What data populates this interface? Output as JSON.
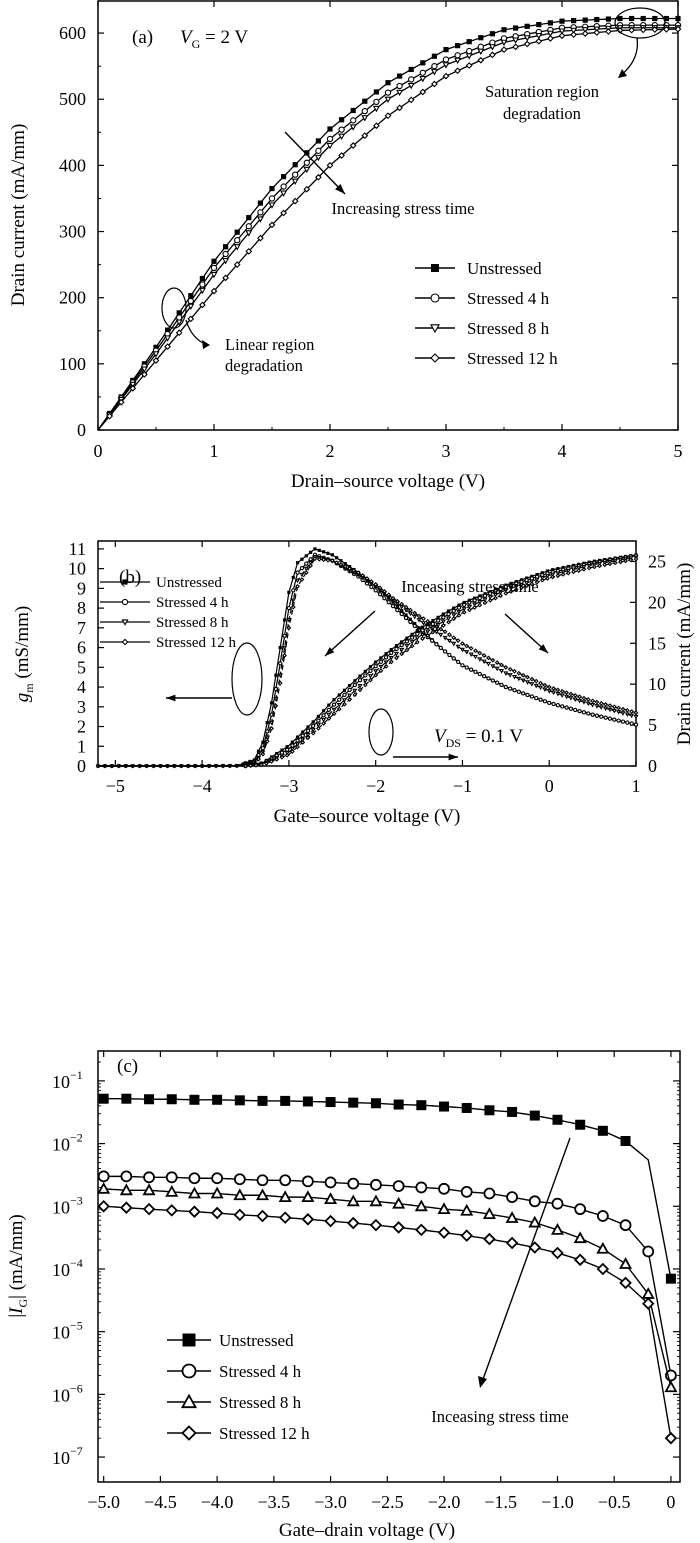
{
  "chart_data": [
    {
      "panel": "(a)",
      "type": "line",
      "condition": {
        "V": "V",
        "sub": "G",
        "rest": " = 2 V"
      },
      "xlabel": "Drain–source voltage (V)",
      "ylabel": "Drain current (mA/mm)",
      "xlim": [
        0,
        5
      ],
      "ylim": [
        0,
        650
      ],
      "xticks": [
        "0",
        "1",
        "2",
        "3",
        "4",
        "5"
      ],
      "yticks": [
        "0",
        "100",
        "200",
        "300",
        "400",
        "500",
        "600"
      ],
      "xtick_values": [
        0,
        1,
        2,
        3,
        4,
        5
      ],
      "ytick_values": [
        0,
        100,
        200,
        300,
        400,
        500,
        600
      ],
      "legend_position": "lower-right",
      "series": [
        {
          "name": "Unstressed",
          "marker": "square",
          "x": [
            0,
            0.5,
            1,
            1.5,
            2,
            2.5,
            3,
            3.5,
            4,
            4.5,
            5
          ],
          "values": [
            0,
            125,
            255,
            365,
            455,
            525,
            575,
            605,
            618,
            622,
            622
          ]
        },
        {
          "name": "Stressed 4 h",
          "marker": "circle",
          "x": [
            0,
            0.5,
            1,
            1.5,
            2,
            2.5,
            3,
            3.5,
            4,
            4.5,
            5
          ],
          "values": [
            0,
            120,
            245,
            350,
            440,
            510,
            560,
            592,
            608,
            612,
            612
          ]
        },
        {
          "name": "Stressed 8 h",
          "marker": "triangle-down",
          "x": [
            0,
            0.5,
            1,
            1.5,
            2,
            2.5,
            3,
            3.5,
            4,
            4.5,
            5
          ],
          "values": [
            0,
            115,
            235,
            340,
            430,
            500,
            552,
            586,
            603,
            608,
            608
          ]
        },
        {
          "name": "Stressed 12 h",
          "marker": "diamond",
          "x": [
            0,
            0.5,
            1,
            1.5,
            2,
            2.5,
            3,
            3.5,
            4,
            4.5,
            5
          ],
          "values": [
            0,
            105,
            210,
            310,
            400,
            475,
            535,
            575,
            596,
            604,
            606
          ]
        }
      ],
      "annotations": {
        "stress": "Increasing stress time",
        "saturation_1": "Saturation region",
        "saturation_2": "degradation",
        "linear_1": "Linear region",
        "linear_2": "degradation"
      }
    },
    {
      "panel": "(b)",
      "type": "line",
      "condition": {
        "V": "V",
        "sub": "DS",
        "rest": " = 0.1 V"
      },
      "xlabel": "Gate–source voltage (V)",
      "ylabel_left": {
        "g": "g",
        "sub": "m",
        "rest": " (mS/mm)"
      },
      "ylabel_right": "Drain current (mA/mm)",
      "xlim": [
        -5.2,
        1
      ],
      "ylim_left": [
        0,
        11.4
      ],
      "ylim_right": [
        0,
        27.5
      ],
      "xticks": [
        "−5",
        "−4",
        "−3",
        "−2",
        "−1",
        "0",
        "1"
      ],
      "xtick_values": [
        -5,
        -4,
        -3,
        -2,
        -1,
        0,
        1
      ],
      "yticks_left": [
        "0",
        "1",
        "2",
        "3",
        "4",
        "5",
        "6",
        "7",
        "8",
        "9",
        "10",
        "11"
      ],
      "yticks_right": [
        "0",
        "5",
        "10",
        "15",
        "20",
        "25"
      ],
      "legend_position": "top-left",
      "series_gm": [
        {
          "name": "Unstressed",
          "x": [
            -5,
            -4,
            -3.6,
            -3.4,
            -3.3,
            -3.2,
            -3.1,
            -3.0,
            -2.9,
            -2.7,
            -2.5,
            -2.2,
            -2.0,
            -1.8,
            -1.5,
            -1.2,
            -1.0,
            -0.5,
            0,
            0.5,
            1.0
          ],
          "values": [
            0,
            0,
            0.02,
            0.3,
            1.2,
            3.2,
            6.0,
            8.8,
            10.3,
            11.0,
            10.7,
            9.8,
            9.1,
            8.3,
            7.0,
            5.8,
            5.1,
            4.0,
            3.2,
            2.6,
            2.1
          ]
        },
        {
          "name": "Stressed 4 h",
          "x": [
            -5,
            -4,
            -3.6,
            -3.4,
            -3.3,
            -3.2,
            -3.1,
            -3.0,
            -2.9,
            -2.7,
            -2.5,
            -2.2,
            -2.0,
            -1.8,
            -1.5,
            -1.2,
            -1.0,
            -0.5,
            0,
            0.5,
            1.0
          ],
          "values": [
            0,
            0,
            0.01,
            0.2,
            0.9,
            2.6,
            5.2,
            8.0,
            9.8,
            10.7,
            10.4,
            9.6,
            8.9,
            8.1,
            6.9,
            5.8,
            5.1,
            4.0,
            3.2,
            2.6,
            2.1
          ]
        },
        {
          "name": "Stressed 8 h",
          "x": [
            -5,
            -4,
            -3.6,
            -3.4,
            -3.3,
            -3.2,
            -3.1,
            -3.0,
            -2.9,
            -2.7,
            -2.5,
            -2.2,
            -2.0,
            -1.8,
            -1.5,
            -1.2,
            -1.0,
            -0.5,
            0,
            0.5,
            1.0
          ],
          "values": [
            0,
            0,
            0.01,
            0.15,
            0.7,
            2.2,
            4.6,
            7.4,
            9.4,
            10.6,
            10.4,
            9.7,
            9.1,
            8.4,
            7.4,
            6.5,
            5.9,
            4.7,
            3.8,
            3.1,
            2.5
          ]
        },
        {
          "name": "Stressed 12 h",
          "x": [
            -5,
            -4,
            -3.6,
            -3.4,
            -3.3,
            -3.2,
            -3.1,
            -3.0,
            -2.9,
            -2.7,
            -2.5,
            -2.2,
            -2.0,
            -1.8,
            -1.5,
            -1.2,
            -1.0,
            -0.5,
            0,
            0.5,
            1.0
          ],
          "values": [
            0,
            0,
            0.01,
            0.1,
            0.6,
            1.9,
            4.2,
            7.0,
            9.1,
            10.5,
            10.4,
            9.8,
            9.2,
            8.5,
            7.6,
            6.8,
            6.2,
            5.0,
            4.0,
            3.3,
            2.7
          ]
        }
      ],
      "series_id": [
        {
          "name": "Unstressed",
          "x": [
            -5,
            -3.5,
            -3.3,
            -3.0,
            -2.7,
            -2.5,
            -2.2,
            -2.0,
            -1.8,
            -1.5,
            -1.2,
            -1.0,
            -0.5,
            0,
            0.5,
            1.0
          ],
          "values": [
            0,
            0,
            0.4,
            2.5,
            5.6,
            7.9,
            10.8,
            12.7,
            14.4,
            16.7,
            18.7,
            19.9,
            22.1,
            23.9,
            25.0,
            25.8
          ]
        },
        {
          "name": "Stressed 4 h",
          "x": [
            -5,
            -3.5,
            -3.3,
            -3.0,
            -2.7,
            -2.5,
            -2.2,
            -2.0,
            -1.8,
            -1.5,
            -1.2,
            -1.0,
            -0.5,
            0,
            0.5,
            1.0
          ],
          "values": [
            0,
            0,
            0.3,
            2.1,
            5.1,
            7.3,
            10.3,
            12.2,
            14.0,
            16.3,
            18.3,
            19.6,
            21.9,
            23.6,
            24.8,
            25.7
          ]
        },
        {
          "name": "Stressed 8 h",
          "x": [
            -5,
            -3.5,
            -3.3,
            -3.0,
            -2.7,
            -2.5,
            -2.2,
            -2.0,
            -1.8,
            -1.5,
            -1.2,
            -1.0,
            -0.5,
            0,
            0.5,
            1.0
          ],
          "values": [
            0,
            0,
            0.2,
            1.7,
            4.6,
            6.7,
            9.6,
            11.6,
            13.4,
            15.8,
            17.8,
            19.1,
            21.5,
            23.3,
            24.6,
            25.5
          ]
        },
        {
          "name": "Stressed 12 h",
          "x": [
            -5,
            -3.5,
            -3.3,
            -3.0,
            -2.7,
            -2.5,
            -2.2,
            -2.0,
            -1.8,
            -1.5,
            -1.2,
            -1.0,
            -0.5,
            0,
            0.5,
            1.0
          ],
          "values": [
            0,
            0,
            0.15,
            1.4,
            4.2,
            6.2,
            9.1,
            11.1,
            12.9,
            15.3,
            17.3,
            18.7,
            21.1,
            23.0,
            24.3,
            25.3
          ]
        }
      ],
      "annotations": {
        "stress": "Inceasing stress time"
      }
    },
    {
      "panel": "(c)",
      "type": "line",
      "yscale": "log",
      "xlabel": "Gate–drain voltage (V)",
      "ylabel": {
        "pre": "|",
        "I": "I",
        "sub": "G",
        "rest": "| (mA/mm)"
      },
      "xlim": [
        -5.05,
        0.08
      ],
      "ylim": [
        4e-08,
        0.3
      ],
      "xticks": [
        "−5.0",
        "−4.5",
        "−4.0",
        "−3.5",
        "−3.0",
        "−2.5",
        "−2.0",
        "−1.5",
        "−1.0",
        "−0.5",
        "0"
      ],
      "xtick_values": [
        -5,
        -4.5,
        -4,
        -3.5,
        -3,
        -2.5,
        -2,
        -1.5,
        -1,
        -0.5,
        0
      ],
      "ytick_exponents": [
        -7,
        -6,
        -5,
        -4,
        -3,
        -2,
        -1
      ],
      "ytick_base": "10",
      "legend_position": "lower-left",
      "series": [
        {
          "name": "Unstressed",
          "marker": "square",
          "x": [
            -5,
            -4.8,
            -4.6,
            -4.4,
            -4.2,
            -4.0,
            -3.8,
            -3.6,
            -3.4,
            -3.2,
            -3.0,
            -2.8,
            -2.6,
            -2.4,
            -2.2,
            -2.0,
            -1.8,
            -1.6,
            -1.4,
            -1.2,
            -1.0,
            -0.8,
            -0.6,
            -0.4,
            -0.2,
            0
          ],
          "values": [
            0.052,
            0.052,
            0.051,
            0.051,
            0.05,
            0.05,
            0.049,
            0.048,
            0.048,
            0.047,
            0.046,
            0.045,
            0.044,
            0.042,
            0.041,
            0.039,
            0.037,
            0.034,
            0.032,
            0.028,
            0.024,
            0.02,
            0.016,
            0.011,
            0.0055,
            7e-05
          ]
        },
        {
          "name": "Stressed 4 h",
          "marker": "circle",
          "x": [
            -5,
            -4.8,
            -4.6,
            -4.4,
            -4.2,
            -4.0,
            -3.8,
            -3.6,
            -3.4,
            -3.2,
            -3.0,
            -2.8,
            -2.6,
            -2.4,
            -2.2,
            -2.0,
            -1.8,
            -1.6,
            -1.4,
            -1.2,
            -1.0,
            -0.8,
            -0.6,
            -0.4,
            -0.2,
            0
          ],
          "values": [
            0.003,
            0.003,
            0.0029,
            0.0029,
            0.0028,
            0.0028,
            0.0027,
            0.0026,
            0.0026,
            0.0025,
            0.0024,
            0.0023,
            0.0022,
            0.0021,
            0.002,
            0.0019,
            0.0017,
            0.0016,
            0.0014,
            0.0012,
            0.0011,
            0.0009,
            0.0007,
            0.0005,
            0.00019,
            2e-06
          ]
        },
        {
          "name": "Stressed 8 h",
          "marker": "triangle",
          "x": [
            -5,
            -4.8,
            -4.6,
            -4.4,
            -4.2,
            -4.0,
            -3.8,
            -3.6,
            -3.4,
            -3.2,
            -3.0,
            -2.8,
            -2.6,
            -2.4,
            -2.2,
            -2.0,
            -1.8,
            -1.6,
            -1.4,
            -1.2,
            -1.0,
            -0.8,
            -0.6,
            -0.4,
            -0.2,
            0
          ],
          "values": [
            0.0019,
            0.0018,
            0.0018,
            0.0017,
            0.0016,
            0.0016,
            0.0015,
            0.0015,
            0.0014,
            0.0014,
            0.0013,
            0.0012,
            0.0012,
            0.0011,
            0.001,
            0.0009,
            0.00085,
            0.00075,
            0.00065,
            0.00055,
            0.00042,
            0.00031,
            0.00021,
            0.00012,
            4e-05,
            1.3e-06
          ]
        },
        {
          "name": "Stressed 12 h",
          "marker": "diamond",
          "x": [
            -5,
            -4.8,
            -4.6,
            -4.4,
            -4.2,
            -4.0,
            -3.8,
            -3.6,
            -3.4,
            -3.2,
            -3.0,
            -2.8,
            -2.6,
            -2.4,
            -2.2,
            -2.0,
            -1.8,
            -1.6,
            -1.4,
            -1.2,
            -1.0,
            -0.8,
            -0.6,
            -0.4,
            -0.2,
            0
          ],
          "values": [
            0.001,
            0.00095,
            0.0009,
            0.00086,
            0.00082,
            0.00078,
            0.00073,
            0.0007,
            0.00066,
            0.00062,
            0.00058,
            0.00054,
            0.0005,
            0.00046,
            0.00042,
            0.00038,
            0.00034,
            0.0003,
            0.00026,
            0.00022,
            0.00018,
            0.00014,
            0.0001,
            6e-05,
            2.8e-05,
            2e-07
          ]
        }
      ],
      "annotations": {
        "stress": "Inceasing stress time"
      }
    }
  ]
}
